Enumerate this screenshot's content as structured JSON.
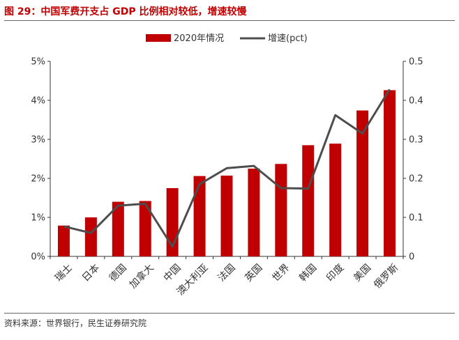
{
  "title": "图 29：中国军费开支占 GDP 比例相对较低，增速较慢",
  "source": "资料来源：世界银行，民生证券研究院",
  "colors": {
    "bar": "#c00000",
    "line": "#4d4d4d",
    "title": "#c00000"
  },
  "chart_data": {
    "type": "bar",
    "categories": [
      "瑞士",
      "日本",
      "德国",
      "加拿大",
      "中国",
      "澳大利亚",
      "法国",
      "英国",
      "世界",
      "韩国",
      "印度",
      "美国",
      "俄罗斯"
    ],
    "series": [
      {
        "name": "2020年情况",
        "type": "bar",
        "axis": "left",
        "values": [
          0.79,
          1.0,
          1.4,
          1.42,
          1.75,
          2.06,
          2.07,
          2.25,
          2.37,
          2.85,
          2.89,
          3.74,
          4.26
        ]
      },
      {
        "name": "增速(pct)",
        "type": "line",
        "axis": "right",
        "values": [
          0.077,
          0.06,
          0.13,
          0.135,
          0.025,
          0.185,
          0.226,
          0.232,
          0.175,
          0.174,
          0.362,
          0.315,
          0.428
        ]
      }
    ],
    "left_axis": {
      "ylim": [
        0,
        5
      ],
      "ticks": [
        "0%",
        "1%",
        "2%",
        "3%",
        "4%",
        "5%"
      ]
    },
    "right_axis": {
      "ylim": [
        0,
        0.5
      ],
      "ticks": [
        "0",
        "0.1",
        "0.2",
        "0.3",
        "0.4",
        "0.5"
      ]
    },
    "legend_position": "top-center",
    "grid": false
  }
}
